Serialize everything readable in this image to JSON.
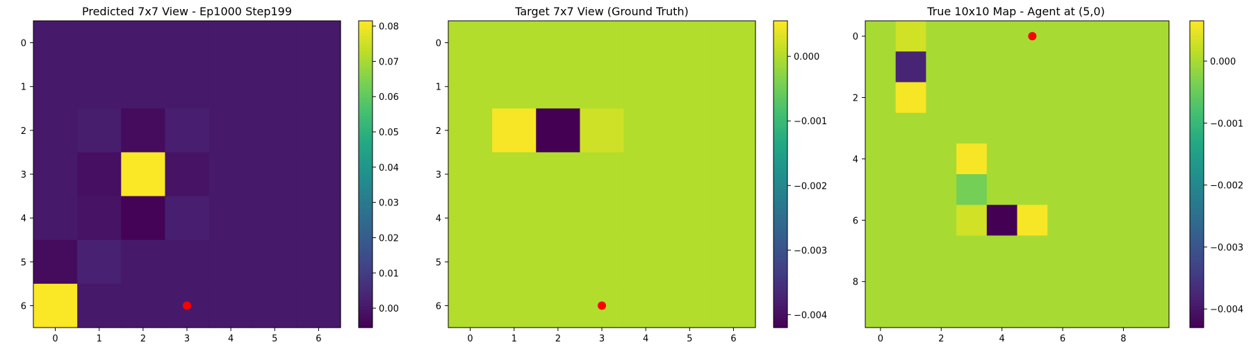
{
  "chart_data": [
    {
      "type": "heatmap",
      "title": "Predicted 7x7 View - Ep1000 Step199",
      "rows": 7,
      "cols": 7,
      "xticks": [
        0,
        1,
        2,
        3,
        4,
        5,
        6
      ],
      "yticks": [
        0,
        1,
        2,
        3,
        4,
        5,
        6
      ],
      "values": [
        [
          0.0005,
          0.0005,
          0.0005,
          0.0005,
          0.0005,
          0.0005,
          0.0005
        ],
        [
          0.0005,
          0.0005,
          0.0005,
          0.0005,
          0.0005,
          0.0005,
          0.0005
        ],
        [
          0.0005,
          0.0015,
          -0.003,
          0.002,
          0.0005,
          0.0005,
          0.0005
        ],
        [
          0.0005,
          -0.002,
          0.081,
          -0.001,
          0.0005,
          0.0005,
          0.0005
        ],
        [
          0.0005,
          -0.001,
          -0.005,
          0.002,
          0.0005,
          0.0005,
          0.0005
        ],
        [
          -0.003,
          0.0025,
          0.0005,
          0.0005,
          0.0005,
          0.0005,
          0.0005
        ],
        [
          0.081,
          0.0005,
          0.0005,
          0.0005,
          0.0005,
          0.0005,
          0.0005
        ]
      ],
      "vmin": -0.0055,
      "vmax": 0.0815,
      "colorbar_ticks": [
        0.0,
        0.01,
        0.02,
        0.03,
        0.04,
        0.05,
        0.06,
        0.07,
        0.08
      ],
      "colorbar_labels": [
        "0.00",
        "0.01",
        "0.02",
        "0.03",
        "0.04",
        "0.05",
        "0.06",
        "0.07",
        "0.08"
      ],
      "agent": {
        "x": 3,
        "y": 6
      },
      "colormap": "viridis",
      "agent_color": "#ff0000"
    },
    {
      "type": "heatmap",
      "title": "Target 7x7 View (Ground Truth)",
      "rows": 7,
      "cols": 7,
      "xticks": [
        0,
        1,
        2,
        3,
        4,
        5,
        6
      ],
      "yticks": [
        0,
        1,
        2,
        3,
        4,
        5,
        6
      ],
      "values": [
        [
          0,
          0,
          0,
          0,
          0,
          0,
          0
        ],
        [
          0,
          0,
          0,
          0,
          0,
          0,
          0
        ],
        [
          0,
          0.0005,
          -0.0042,
          0.0002,
          0,
          0,
          0
        ],
        [
          0,
          0,
          0,
          0,
          0,
          0,
          0
        ],
        [
          0,
          0,
          0,
          0,
          0,
          0,
          0
        ],
        [
          0,
          0,
          0,
          0,
          0,
          0,
          0
        ],
        [
          0,
          0,
          0,
          0,
          0,
          0,
          0
        ]
      ],
      "vmin": -0.0042,
      "vmax": 0.00055,
      "colorbar_ticks": [
        0.0,
        -0.001,
        -0.002,
        -0.003,
        -0.004
      ],
      "colorbar_labels": [
        "0.000",
        "−0.001",
        "−0.002",
        "−0.003",
        "−0.004"
      ],
      "agent": {
        "x": 3,
        "y": 6
      },
      "colormap": "viridis",
      "agent_color": "#ff0000"
    },
    {
      "type": "heatmap",
      "title": "True 10x10 Map - Agent at (5,0)",
      "rows": 10,
      "cols": 10,
      "xticks": [
        0,
        2,
        4,
        6,
        8
      ],
      "yticks": [
        0,
        2,
        4,
        6,
        8
      ],
      "values": [
        [
          0,
          0.0003,
          0,
          0,
          0,
          0,
          0,
          0,
          0,
          0
        ],
        [
          0,
          -0.0038,
          0,
          0,
          0,
          0,
          0,
          0,
          0,
          0
        ],
        [
          0,
          0.0006,
          0,
          0,
          0,
          0,
          0,
          0,
          0,
          0
        ],
        [
          0,
          0,
          0,
          0,
          0,
          0,
          0,
          0,
          0,
          0
        ],
        [
          0,
          0,
          0,
          0.0006,
          0,
          0,
          0,
          0,
          0,
          0
        ],
        [
          0,
          0,
          0,
          -0.0004,
          0,
          0,
          0,
          0,
          0,
          0
        ],
        [
          0,
          0,
          0,
          0.0003,
          -0.0043,
          0.0006,
          0,
          0,
          0,
          0
        ],
        [
          0,
          0,
          0,
          0,
          0,
          0,
          0,
          0,
          0,
          0
        ],
        [
          0,
          0,
          0,
          0,
          0,
          0,
          0,
          0,
          0,
          0
        ],
        [
          0,
          0,
          0,
          0,
          0,
          0,
          0,
          0,
          0,
          0
        ]
      ],
      "vmin": -0.0043,
      "vmax": 0.00065,
      "colorbar_ticks": [
        0.0,
        -0.001,
        -0.002,
        -0.003,
        -0.004
      ],
      "colorbar_labels": [
        "0.000",
        "−0.001",
        "−0.002",
        "−0.003",
        "−0.004"
      ],
      "agent": {
        "x": 5,
        "y": 0
      },
      "colormap": "viridis",
      "agent_color": "#ff0000"
    }
  ]
}
